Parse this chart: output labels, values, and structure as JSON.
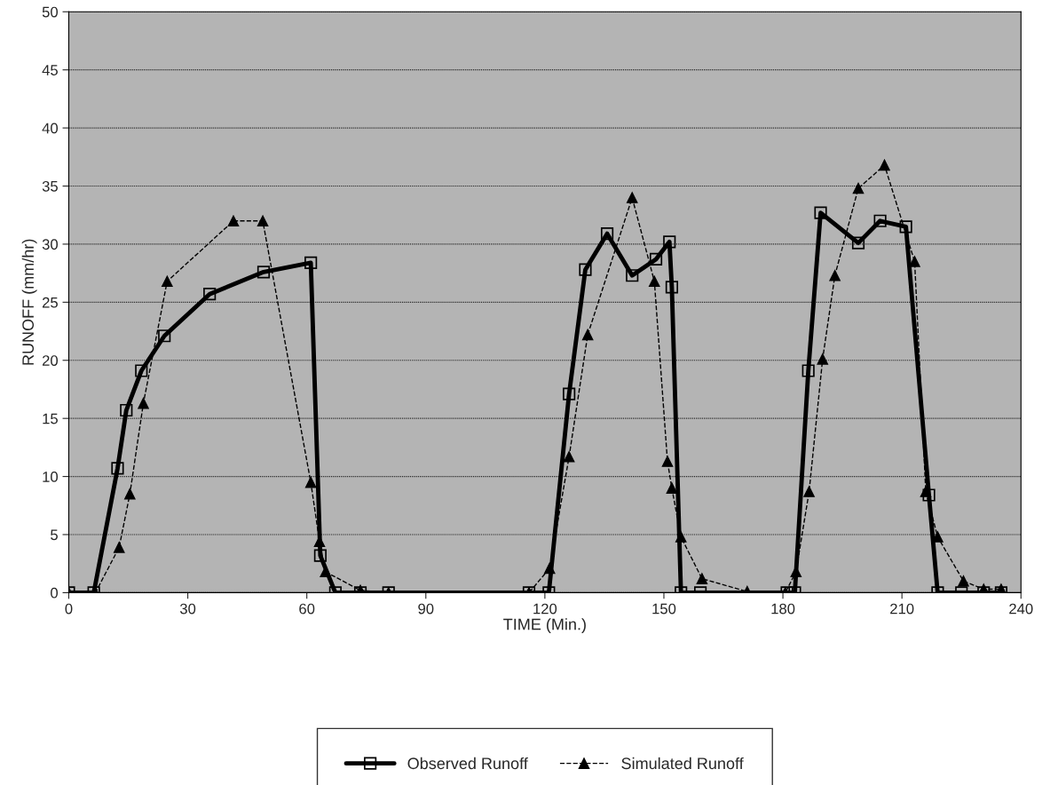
{
  "chart_data": {
    "type": "line",
    "xlabel": "TIME (Min.)",
    "ylabel": "RUNOFF (mm/hr)",
    "xlim": [
      0,
      240
    ],
    "xticks": [
      0,
      30,
      60,
      90,
      120,
      150,
      180,
      210,
      240
    ],
    "ylim": [
      0,
      50
    ],
    "yticks": [
      0,
      5,
      10,
      15,
      20,
      25,
      30,
      35,
      40,
      45,
      50
    ],
    "grid": "y",
    "legend": "bottom",
    "series": [
      {
        "name": "Observed Runoff",
        "color": "#000000",
        "marker": "square",
        "line_style": "solid",
        "x": [
          0,
          6.3,
          12.3,
          14.5,
          18.3,
          24.1,
          35.5,
          49.1,
          61,
          63.4,
          67.2,
          73.5,
          80.6,
          116,
          121,
          126.1,
          130.2,
          135.7,
          142,
          148,
          151.4,
          152,
          154.3,
          159.2,
          181,
          183,
          186.4,
          189.5,
          199,
          204.5,
          211,
          216.8,
          219,
          225,
          230.6,
          235
        ],
        "values": [
          0,
          0,
          10.7,
          15.7,
          19.1,
          22.1,
          25.7,
          27.6,
          28.4,
          3.2,
          0,
          0,
          0,
          0,
          0,
          17.1,
          27.8,
          30.9,
          27.3,
          28.7,
          30.2,
          26.3,
          0,
          0,
          0,
          0,
          19.1,
          32.7,
          30.1,
          32.0,
          31.5,
          8.4,
          0,
          0,
          0,
          0
        ]
      },
      {
        "name": "Simulated Runoff",
        "color": "#000000",
        "marker": "triangle",
        "line_style": "dashed",
        "x": [
          0,
          6.7,
          12.7,
          15.4,
          18.8,
          24.8,
          41.5,
          48.9,
          61,
          63.2,
          64.7,
          73.5,
          80.6,
          116,
          121.2,
          126.1,
          130.8,
          142,
          147.6,
          150.9,
          152,
          154.3,
          159.6,
          171,
          180.6,
          183.3,
          186.6,
          190,
          193.1,
          199,
          205.6,
          213.2,
          216,
          219,
          225.5,
          230.6,
          235
        ],
        "values": [
          0,
          0,
          3.9,
          8.5,
          16.3,
          26.8,
          32,
          32,
          9.5,
          4.4,
          1.8,
          0.2,
          0,
          0,
          2.1,
          11.7,
          22.2,
          34,
          26.8,
          11.3,
          9.0,
          4.8,
          1.2,
          0.1,
          0,
          1.8,
          8.7,
          20.1,
          27.3,
          34.8,
          36.8,
          28.5,
          8.7,
          4.8,
          1,
          0.3,
          0.3
        ]
      }
    ]
  }
}
